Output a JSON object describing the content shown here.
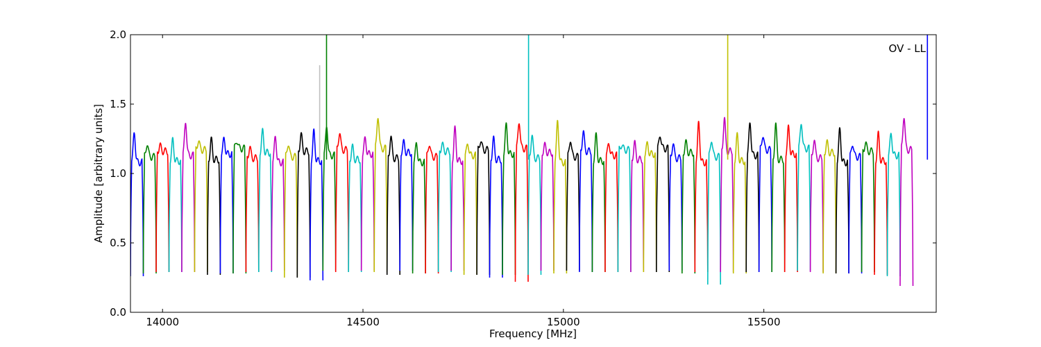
{
  "chart_data": {
    "type": "line",
    "title": "",
    "annotation": "OV - LL",
    "xlabel": "Frequency [MHz]",
    "ylabel": "Amplitude [arbitrary units]",
    "xlim": [
      13920,
      15930
    ],
    "ylim": [
      0.0,
      2.0
    ],
    "x_ticks": [
      14000,
      14500,
      15000,
      15500
    ],
    "x_tick_labels": [
      "14000",
      "14500",
      "15000",
      "15500"
    ],
    "y_ticks": [
      0.0,
      0.5,
      1.0,
      1.5,
      2.0
    ],
    "y_tick_labels": [
      "0.0",
      "0.5",
      "1.0",
      "1.5",
      "2.0"
    ],
    "grid": false,
    "legend": "none",
    "color_cycle": [
      "#0000ff",
      "#008000",
      "#ff0000",
      "#00bfbf",
      "#bf00bf",
      "#bfbf00",
      "#000000"
    ],
    "band_width_mhz": 32,
    "band_start_mhz": 13920,
    "band_peaks": [
      1.3,
      1.22,
      1.2,
      1.24,
      1.38,
      1.24,
      1.24,
      1.25,
      1.24,
      1.19,
      1.3,
      1.27,
      1.22,
      1.28,
      1.3,
      1.35,
      1.3,
      1.19,
      1.25,
      1.42,
      1.27,
      1.22,
      1.22,
      1.22,
      1.21,
      1.32,
      1.22,
      1.24,
      1.25,
      1.35,
      1.38,
      1.28,
      1.2,
      1.38,
      1.25,
      1.3,
      1.27,
      1.22,
      1.21,
      1.22,
      1.21,
      1.28,
      1.22,
      1.22,
      1.37,
      1.25,
      1.4,
      1.27,
      1.37,
      1.28,
      1.35,
      1.33,
      1.37,
      1.25,
      1.22,
      1.32,
      1.22,
      1.22,
      1.28,
      1.29,
      1.42
    ],
    "band_floors": [
      0.26,
      0.28,
      0.29,
      0.29,
      0.29,
      0.29,
      0.27,
      0.28,
      0.28,
      0.29,
      0.29,
      0.3,
      0.25,
      0.25,
      0.23,
      0.3,
      0.29,
      0.29,
      0.3,
      0.29,
      0.27,
      0.3,
      0.28,
      0.28,
      0.29,
      0.3,
      0.27,
      0.27,
      0.25,
      0.27,
      0.22,
      0.27,
      0.3,
      0.28,
      0.3,
      0.29,
      0.29,
      0.29,
      0.29,
      0.29,
      0.29,
      0.29,
      0.3,
      0.28,
      0.29,
      0.2,
      0.29,
      0.28,
      0.29,
      0.29,
      0.29,
      0.29,
      0.3,
      0.29,
      0.28,
      0.28,
      0.28,
      0.29,
      0.27,
      0.26,
      0.19
    ],
    "spikes": [
      {
        "x": 14392,
        "y": 1.78,
        "color": "#bfbfbf"
      },
      {
        "x": 14409,
        "y": 2.0,
        "color": "#008000"
      },
      {
        "x": 14913,
        "y": 2.0,
        "color": "#00bfbf"
      },
      {
        "x": 15410,
        "y": 2.0,
        "color": "#bfbf00"
      },
      {
        "x": 15908,
        "y": 2.0,
        "color": "#0000ff"
      }
    ]
  }
}
